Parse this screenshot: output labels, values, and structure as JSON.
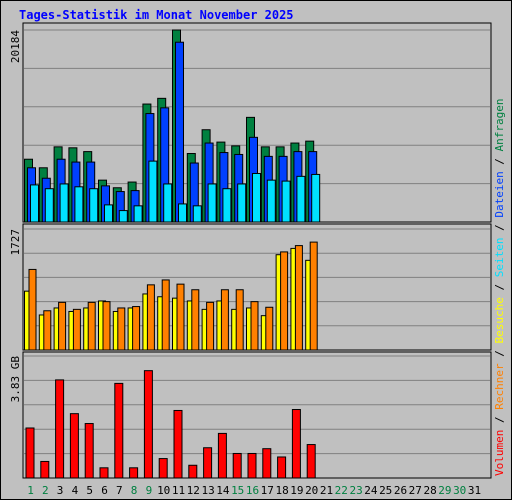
{
  "title": "Tages-Statistik im Monat November 2025",
  "colors": {
    "anfragen": "#008040",
    "dateien": "#0040ff",
    "seiten": "#00e0ff",
    "besuche": "#ffff00",
    "rechner": "#ff8000",
    "volumen": "#ff0000",
    "weekday_label": "#000000",
    "weekend_label": "#008040"
  },
  "legend": {
    "volumen": "Volumen",
    "rechner": "Rechner",
    "besuche": "Besuche",
    "seiten": "Seiten",
    "dateien": "Dateien",
    "anfragen": "Anfragen",
    "separator": " / "
  },
  "chart_data": [
    {
      "type": "bar",
      "panel": "requests",
      "y_max_label": "20184",
      "ylim": [
        0,
        20184
      ],
      "x": [
        1,
        2,
        3,
        4,
        5,
        6,
        7,
        8,
        9,
        10,
        11,
        12,
        13,
        14,
        15,
        16,
        17,
        18,
        19,
        20
      ],
      "series": [
        {
          "name": "Anfragen",
          "values": [
            6600,
            5700,
            7900,
            7800,
            7400,
            4400,
            3600,
            4200,
            12400,
            13000,
            20184,
            7200,
            9700,
            8400,
            8000,
            11000,
            7900,
            7900,
            8300,
            8500
          ]
        },
        {
          "name": "Dateien",
          "values": [
            5700,
            4600,
            6600,
            6300,
            6300,
            3800,
            3200,
            3300,
            11400,
            12000,
            18900,
            6200,
            8300,
            7300,
            7100,
            8900,
            6900,
            6900,
            7400,
            7400
          ]
        },
        {
          "name": "Seiten",
          "values": [
            3900,
            3500,
            4000,
            3700,
            3500,
            1800,
            1200,
            1700,
            6400,
            4000,
            1900,
            1700,
            4000,
            3500,
            4000,
            5100,
            4400,
            4300,
            4800,
            5000
          ]
        }
      ]
    },
    {
      "type": "bar",
      "panel": "visits",
      "y_max_label": "1727",
      "ylim": [
        0,
        1727
      ],
      "x": [
        1,
        2,
        3,
        4,
        5,
        6,
        7,
        8,
        9,
        10,
        11,
        12,
        13,
        14,
        15,
        16,
        17,
        18,
        19,
        20
      ],
      "series": [
        {
          "name": "Besuche",
          "values": [
            840,
            500,
            600,
            550,
            600,
            700,
            550,
            600,
            800,
            760,
            740,
            700,
            580,
            700,
            580,
            600,
            490,
            1360,
            1450,
            1280
          ]
        },
        {
          "name": "Rechner",
          "values": [
            1150,
            560,
            680,
            580,
            680,
            690,
            600,
            620,
            930,
            1000,
            940,
            860,
            680,
            860,
            860,
            690,
            610,
            1400,
            1490,
            1540
          ]
        }
      ]
    },
    {
      "type": "bar",
      "panel": "volume",
      "y_max_label": "3.83 GB",
      "ylim": [
        0,
        3.83
      ],
      "x": [
        1,
        2,
        3,
        4,
        5,
        6,
        7,
        8,
        9,
        10,
        11,
        12,
        13,
        14,
        15,
        16,
        17,
        18,
        19,
        20
      ],
      "series": [
        {
          "name": "Volumen",
          "values": [
            1.57,
            0.52,
            3.08,
            2.02,
            1.71,
            0.32,
            2.97,
            0.32,
            3.37,
            0.61,
            2.12,
            0.4,
            0.95,
            1.4,
            0.77,
            0.77,
            0.92,
            0.66,
            2.15,
            1.05
          ]
        }
      ]
    }
  ],
  "day_labels": [
    {
      "label": "1",
      "weekend": true
    },
    {
      "label": "2",
      "weekend": true
    },
    {
      "label": "3",
      "weekend": false
    },
    {
      "label": "4",
      "weekend": false
    },
    {
      "label": "5",
      "weekend": false
    },
    {
      "label": "6",
      "weekend": false
    },
    {
      "label": "7",
      "weekend": false
    },
    {
      "label": "8",
      "weekend": true
    },
    {
      "label": "9",
      "weekend": true
    },
    {
      "label": "10",
      "weekend": false
    },
    {
      "label": "11",
      "weekend": false
    },
    {
      "label": "12",
      "weekend": false
    },
    {
      "label": "13",
      "weekend": false
    },
    {
      "label": "14",
      "weekend": false
    },
    {
      "label": "15",
      "weekend": true
    },
    {
      "label": "16",
      "weekend": true
    },
    {
      "label": "17",
      "weekend": false
    },
    {
      "label": "18",
      "weekend": false
    },
    {
      "label": "19",
      "weekend": false
    },
    {
      "label": "20",
      "weekend": false
    },
    {
      "label": "21",
      "weekend": false
    },
    {
      "label": "22",
      "weekend": true
    },
    {
      "label": "23",
      "weekend": true
    },
    {
      "label": "24",
      "weekend": false
    },
    {
      "label": "25",
      "weekend": false
    },
    {
      "label": "26",
      "weekend": false
    },
    {
      "label": "27",
      "weekend": false
    },
    {
      "label": "28",
      "weekend": false
    },
    {
      "label": "29",
      "weekend": true
    },
    {
      "label": "30",
      "weekend": true
    },
    {
      "label": "31",
      "weekend": false
    }
  ]
}
